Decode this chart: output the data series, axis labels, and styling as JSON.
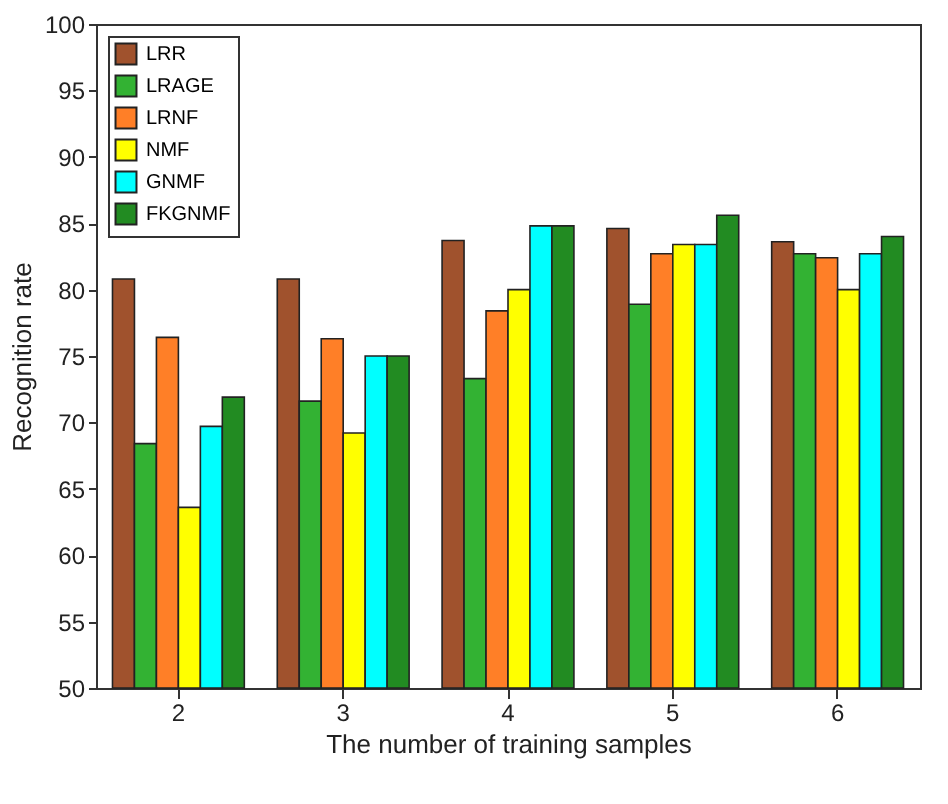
{
  "chart_data": {
    "type": "bar",
    "xlabel": "The number of training samples",
    "ylabel": "Recognition rate",
    "categories": [
      "2",
      "3",
      "4",
      "5",
      "6"
    ],
    "series": [
      {
        "name": "LRR",
        "color": "#a0522d",
        "values": [
          80.8,
          80.8,
          83.7,
          84.6,
          83.6
        ]
      },
      {
        "name": "LRAGE",
        "color": "#33b233",
        "values": [
          68.4,
          71.6,
          73.3,
          78.9,
          82.7
        ]
      },
      {
        "name": "LRNF",
        "color": "#ff7f27",
        "values": [
          76.4,
          76.3,
          78.4,
          82.7,
          82.4
        ]
      },
      {
        "name": "NMF",
        "color": "#ffff00",
        "values": [
          63.6,
          69.2,
          80,
          83.4,
          80
        ]
      },
      {
        "name": "GNMF",
        "color": "#00ffff",
        "values": [
          69.7,
          75,
          84.8,
          83.4,
          82.7
        ]
      },
      {
        "name": "FKGNMF",
        "color": "#228b22",
        "values": [
          71.9,
          75,
          84.8,
          85.6,
          84
        ]
      }
    ],
    "ylim": [
      50,
      100
    ],
    "yticks": [
      50,
      55,
      60,
      65,
      70,
      75,
      80,
      85,
      90,
      95,
      100
    ],
    "grid": false,
    "legend": "top left"
  }
}
